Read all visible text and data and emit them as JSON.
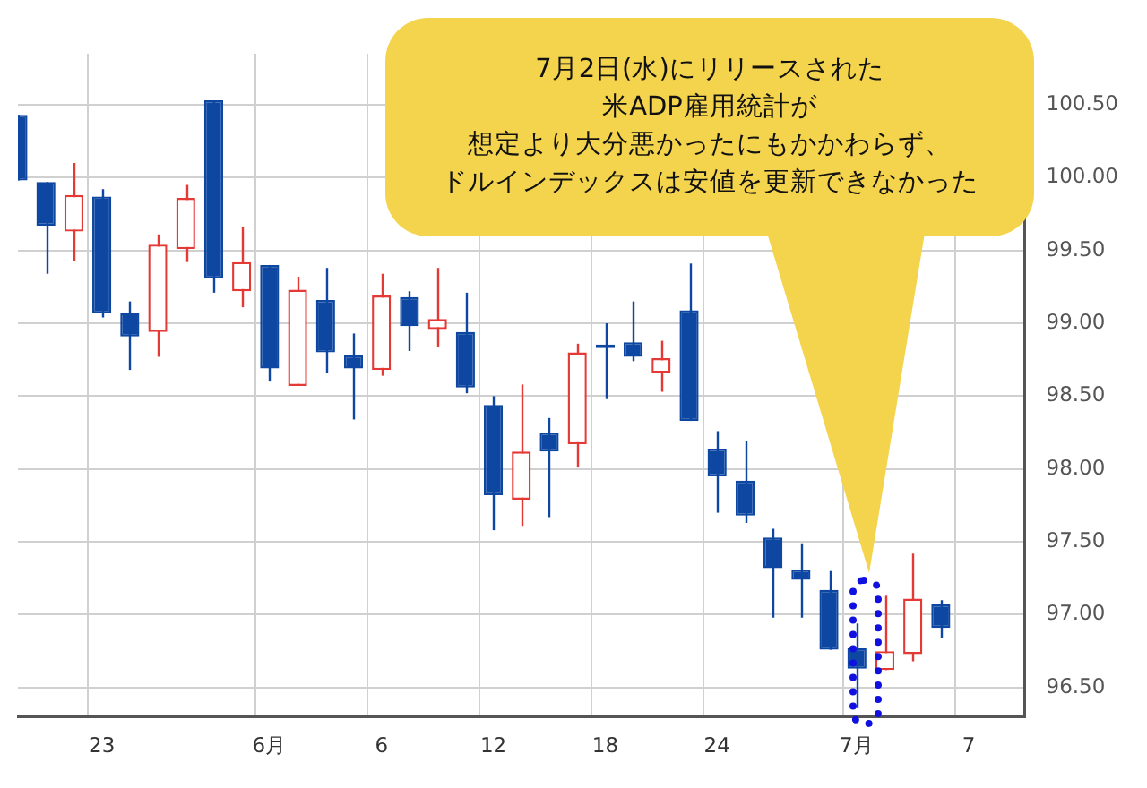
{
  "chart_data": {
    "type": "candlestick",
    "categories": [
      null,
      null,
      null,
      "23",
      null,
      null,
      null,
      null,
      null,
      "6月",
      null,
      null,
      null,
      "6",
      null,
      null,
      null,
      "12",
      null,
      null,
      null,
      "18",
      null,
      null,
      null,
      "24",
      null,
      null,
      null,
      null,
      "7月",
      null,
      null,
      null,
      "7",
      null,
      null
    ],
    "ohlc": [
      [
        100.43,
        100.43,
        99.98,
        99.98
      ],
      [
        99.97,
        99.97,
        99.34,
        99.67
      ],
      [
        99.63,
        100.1,
        99.43,
        99.88
      ],
      [
        99.87,
        99.92,
        99.04,
        99.07
      ],
      [
        99.07,
        99.15,
        98.68,
        98.91
      ],
      [
        98.94,
        99.61,
        98.77,
        99.54
      ],
      [
        99.51,
        99.95,
        99.42,
        99.86
      ],
      [
        100.53,
        100.53,
        99.21,
        99.31
      ],
      [
        99.22,
        99.66,
        99.11,
        99.42
      ],
      [
        99.4,
        99.4,
        98.6,
        98.69
      ],
      [
        98.57,
        99.32,
        98.57,
        99.23
      ],
      [
        99.16,
        99.38,
        98.66,
        98.8
      ],
      [
        98.78,
        98.93,
        98.34,
        98.69
      ],
      [
        98.68,
        99.34,
        98.64,
        99.19
      ],
      [
        99.18,
        99.22,
        98.81,
        98.98
      ],
      [
        98.96,
        99.38,
        98.84,
        99.03
      ],
      [
        98.94,
        99.21,
        98.52,
        98.56
      ],
      [
        98.44,
        98.5,
        97.58,
        97.82
      ],
      [
        97.79,
        98.58,
        97.61,
        98.12
      ],
      [
        98.25,
        98.35,
        97.67,
        98.12
      ],
      [
        98.17,
        98.86,
        98.01,
        98.8
      ],
      [
        98.85,
        99.0,
        98.48,
        98.83
      ],
      [
        98.87,
        99.15,
        98.74,
        98.77
      ],
      [
        98.66,
        98.88,
        98.53,
        98.76
      ],
      [
        99.09,
        99.41,
        98.33,
        98.33
      ],
      [
        98.14,
        98.26,
        97.7,
        97.95
      ],
      [
        97.92,
        98.19,
        97.63,
        97.68
      ],
      [
        97.53,
        97.59,
        96.98,
        97.32
      ],
      [
        97.31,
        97.49,
        96.98,
        97.24
      ],
      [
        97.17,
        97.3,
        96.76,
        96.76
      ],
      [
        96.77,
        96.94,
        96.36,
        96.63
      ],
      [
        96.62,
        97.13,
        96.62,
        96.75
      ],
      [
        96.73,
        97.42,
        96.68,
        97.11
      ],
      [
        97.07,
        97.1,
        96.84,
        96.91
      ],
      null,
      null,
      null
    ],
    "colors": [
      "#0d47a1",
      "#0d47a1",
      "#e53935",
      "#0d47a1",
      "#0d47a1",
      "#e53935",
      "#e53935",
      "#0d47a1",
      "#e53935",
      "#0d47a1",
      "#e53935",
      "#0d47a1",
      "#0d47a1",
      "#e53935",
      "#0d47a1",
      "#e53935",
      "#0d47a1",
      "#0d47a1",
      "#e53935",
      "#0d47a1",
      "#e53935",
      "#0d47a1",
      "#0d47a1",
      "#e53935",
      "#0d47a1",
      "#0d47a1",
      "#0d47a1",
      "#0d47a1",
      "#0d47a1",
      "#0d47a1",
      "#0d47a1",
      "#e53935",
      "#e53935",
      "#0d47a1",
      null,
      null,
      null
    ],
    "ylim": [
      96.3,
      100.85
    ],
    "yticks": [
      {
        "value": 96.5,
        "label": "96.50"
      },
      {
        "value": 97,
        "label": "97.00"
      },
      {
        "value": 97.5,
        "label": "97.50"
      },
      {
        "value": 98,
        "label": "98.00"
      },
      {
        "value": 98.5,
        "label": "98.50"
      },
      {
        "value": 99,
        "label": "99.00"
      },
      {
        "value": 99.5,
        "label": "99.50"
      },
      {
        "value": 100,
        "label": "100.00"
      },
      {
        "value": 100.5,
        "label": "100.50"
      }
    ],
    "grid": true,
    "legend": false,
    "annotations": [
      "7月2日(水)にリリースされた",
      "米ADP雇用統計が",
      "想定より大分悪かったにもかかわらず、",
      "ドルインデックスは安値を更新できなかった"
    ]
  }
}
